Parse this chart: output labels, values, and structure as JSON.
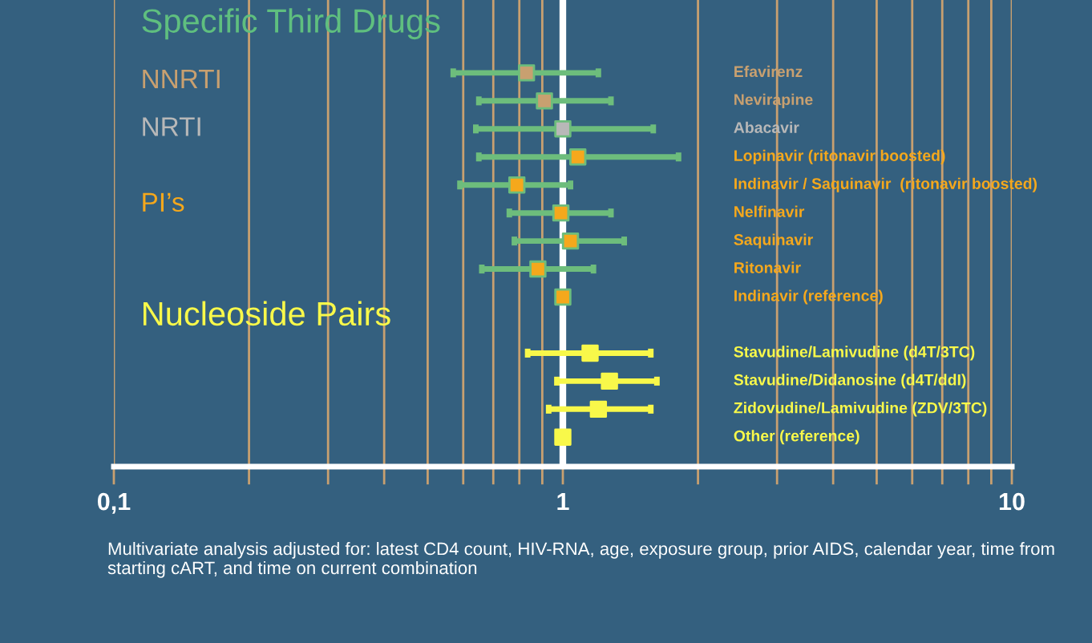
{
  "chart_data": {
    "type": "scatter",
    "orientation": "horizontal",
    "title": "Specific Third Drugs",
    "categories": [
      "Efavirenz",
      "Nevirapine",
      "Abacavir",
      "Lopinavir (ritonavir boosted)",
      "Indinavir / Saquinavir  (ritonavir boosted)",
      "Nelfinavir",
      "Saquinavir",
      "Ritonavir",
      "Indinavir (reference)",
      null,
      "Stavudine/Lamivudine (d4T/3TC)",
      "Stavudine/Didanosine (d4T/ddI)",
      "Zidovudine/Lamivudine (ZDV/3TC)",
      "Other (reference)"
    ],
    "series": [
      {
        "name": "NNRTI",
        "color": "#c8a070",
        "values": [
          0.83,
          0.91,
          null,
          null,
          null,
          null,
          null,
          null,
          null,
          null,
          null,
          null,
          null,
          null
        ],
        "errors": [
          [
            0.57,
            1.2
          ],
          [
            0.65,
            1.28
          ],
          null,
          null,
          null,
          null,
          null,
          null,
          null,
          null,
          null,
          null,
          null,
          null
        ]
      },
      {
        "name": "NRTI",
        "color": "#b8b8b8",
        "values": [
          null,
          null,
          1.0,
          null,
          null,
          null,
          null,
          null,
          null,
          null,
          null,
          null,
          null,
          null
        ],
        "errors": [
          null,
          null,
          [
            0.64,
            1.59
          ],
          null,
          null,
          null,
          null,
          null,
          null,
          null,
          null,
          null,
          null,
          null
        ]
      },
      {
        "name": "PI’s",
        "color": "#f5a81c",
        "values": [
          null,
          null,
          null,
          1.08,
          0.79,
          0.99,
          1.04,
          0.88,
          1.0,
          null,
          null,
          null,
          null,
          null
        ],
        "errors": [
          null,
          null,
          null,
          [
            0.65,
            1.81
          ],
          [
            0.59,
            1.04
          ],
          [
            0.76,
            1.28
          ],
          [
            0.78,
            1.37
          ],
          [
            0.66,
            1.17
          ],
          null,
          null,
          null,
          null,
          null,
          null
        ]
      },
      {
        "name": "Nucleoside Pairs",
        "color": "#f8f84a",
        "values": [
          null,
          null,
          null,
          null,
          null,
          null,
          null,
          null,
          null,
          null,
          1.15,
          1.27,
          1.2,
          1.0
        ],
        "errors": [
          null,
          null,
          null,
          null,
          null,
          null,
          null,
          null,
          null,
          null,
          [
            0.835,
            1.57
          ],
          [
            0.97,
            1.62
          ],
          [
            0.93,
            1.57
          ],
          null
        ]
      }
    ],
    "log": "x",
    "xlim": [
      0.1,
      10
    ],
    "xticks": [
      {
        "value": 0.1,
        "label": "0,1"
      },
      {
        "value": 0.2,
        "label": null
      },
      {
        "value": 0.3,
        "label": null
      },
      {
        "value": 0.4,
        "label": null
      },
      {
        "value": 0.5,
        "label": null
      },
      {
        "value": 0.6,
        "label": null
      },
      {
        "value": 0.7,
        "label": null
      },
      {
        "value": 0.8,
        "label": null
      },
      {
        "value": 0.9,
        "label": null
      },
      1,
      {
        "value": 2,
        "label": null
      },
      {
        "value": 3,
        "label": null
      },
      {
        "value": 4,
        "label": null
      },
      {
        "value": 5,
        "label": null
      },
      {
        "value": 6,
        "label": null
      },
      {
        "value": 7,
        "label": null
      },
      {
        "value": 8,
        "label": null
      },
      {
        "value": 9,
        "label": null
      },
      10
    ],
    "grid": "x",
    "marker": "square",
    "tick_labels": "x",
    "ref_lines": [
      {
        "axis": "x",
        "value": 1,
        "label": null,
        "color": "#ffffff"
      }
    ],
    "annotations": [
      "Multivariate analysis adjusted for: latest CD4 count, HIV-RNA, age, exposure group, prior AIDS, calendar year, time from starting cART, and time on current combination"
    ]
  }
}
